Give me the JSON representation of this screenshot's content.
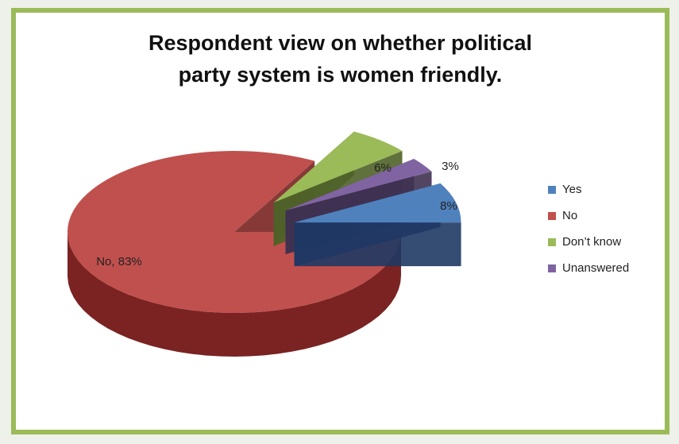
{
  "chart_data": {
    "type": "pie",
    "title_lines": [
      "Respondent view on whether political",
      "party system is women friendly."
    ],
    "slices": [
      {
        "label": "Yes",
        "value": 8,
        "data_label": "8%",
        "color": "#4f81bd",
        "side": "#1f3864"
      },
      {
        "label": "No",
        "value": 83,
        "data_label": "No, 83%",
        "color": "#c0504d",
        "side": "#7a2322"
      },
      {
        "label": "Don’t  know",
        "value": 6,
        "data_label": "6%",
        "color": "#9bbb59",
        "side": "#4f6228"
      },
      {
        "label": "Unanswered",
        "value": 3,
        "data_label": "3%",
        "color": "#8064a2",
        "side": "#3f3151"
      }
    ],
    "style": "3d-exploded",
    "legend_position": "right"
  }
}
